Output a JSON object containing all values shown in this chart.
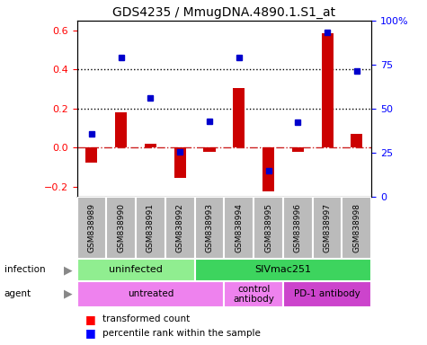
{
  "title": "GDS4235 / MmugDNA.4890.1.S1_at",
  "samples": [
    "GSM838989",
    "GSM838990",
    "GSM838991",
    "GSM838992",
    "GSM838993",
    "GSM838994",
    "GSM838995",
    "GSM838996",
    "GSM838997",
    "GSM838998"
  ],
  "transformed_count": [
    -0.075,
    0.18,
    0.02,
    -0.155,
    -0.02,
    0.305,
    -0.225,
    -0.02,
    0.585,
    0.07
  ],
  "percentile_rank": [
    0.07,
    0.46,
    0.255,
    -0.02,
    0.135,
    0.46,
    -0.115,
    0.13,
    0.59,
    0.395
  ],
  "ylim_left": [
    -0.25,
    0.65
  ],
  "ylim_right": [
    0,
    100
  ],
  "yticks_left": [
    -0.2,
    0.0,
    0.2,
    0.4,
    0.6
  ],
  "yticks_right": [
    0,
    25,
    50,
    75,
    100
  ],
  "ytick_labels_right": [
    "0",
    "25",
    "50",
    "75",
    "100%"
  ],
  "hlines": [
    0.2,
    0.4
  ],
  "infection_groups": [
    {
      "label": "uninfected",
      "start": 0,
      "end": 4,
      "color": "#90EE90"
    },
    {
      "label": "SIVmac251",
      "start": 4,
      "end": 10,
      "color": "#3DD45E"
    }
  ],
  "agent_groups": [
    {
      "label": "untreated",
      "start": 0,
      "end": 5,
      "color": "#EE82EE"
    },
    {
      "label": "control\nantibody",
      "start": 5,
      "end": 7,
      "color": "#EE82EE"
    },
    {
      "label": "PD-1 antibody",
      "start": 7,
      "end": 10,
      "color": "#CC44CC"
    }
  ],
  "bar_color": "#CC0000",
  "dot_color": "#0000CC",
  "zero_line_color": "#CC2222",
  "label_row_color": "#BBBBBB",
  "infection_label": "infection",
  "agent_label": "agent"
}
